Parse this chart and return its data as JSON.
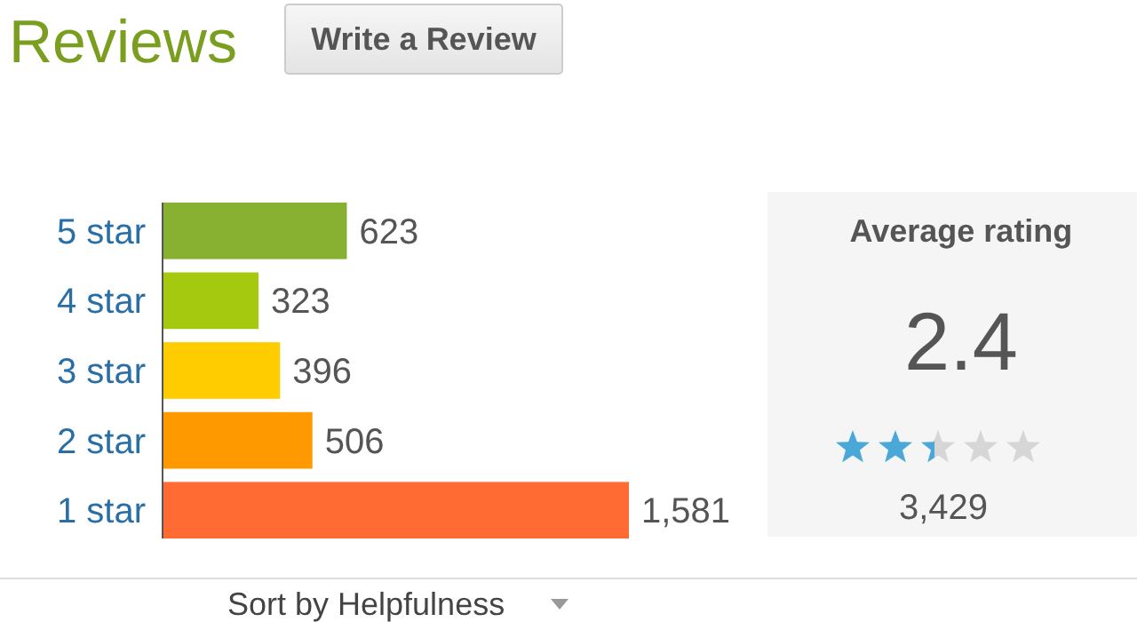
{
  "chart_data": [
    {
      "type": "bar",
      "orientation": "horizontal",
      "title": "Reviews",
      "categories": [
        "5 star",
        "4 star",
        "3 star",
        "2 star",
        "1 star"
      ],
      "values": [
        623,
        323,
        396,
        506,
        1581
      ],
      "colors": [
        "#88b131",
        "#a5c90f",
        "#ffcc00",
        "#ff9900",
        "#ff6b33"
      ],
      "value_labels": [
        "623",
        "323",
        "396",
        "506",
        "1,581"
      ],
      "annotations": [
        "Write a Review",
        "Sort by Helpfulness"
      ]
    },
    {
      "type": "other",
      "title": "Average rating",
      "annotations": [
        "2.4",
        "3,429"
      ]
    }
  ]
}
